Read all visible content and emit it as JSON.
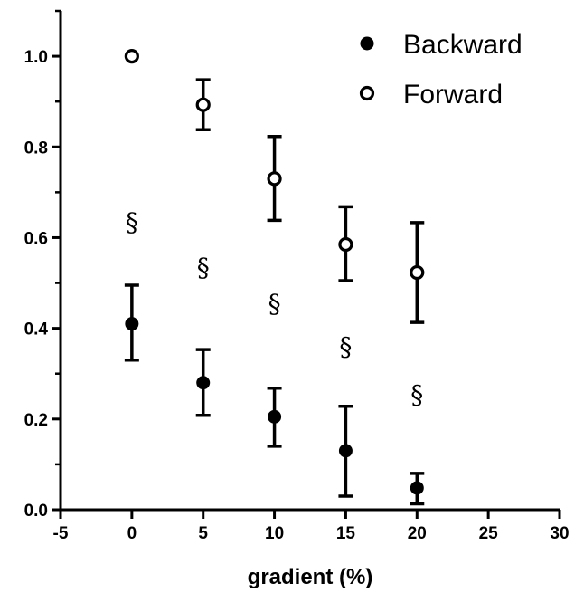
{
  "chart_data": {
    "type": "scatter",
    "xlabel": "gradient (%)",
    "ylabel": "",
    "xlim": [
      -5,
      30
    ],
    "ylim": [
      0,
      1.1
    ],
    "x_ticks": [
      -5,
      0,
      5,
      10,
      15,
      20,
      25,
      30
    ],
    "x_tick_labels": [
      "-5",
      "0",
      "5",
      "10",
      "15",
      "20",
      "25",
      "30"
    ],
    "y_ticks": [
      0,
      0.2,
      0.4,
      0.6,
      0.8,
      1.0
    ],
    "y_tick_labels": [
      "0.0",
      "0.2",
      "0.4",
      "0.6",
      "0.8",
      "1.0"
    ],
    "grid": false,
    "legend": "top-right",
    "series": [
      {
        "name": "Backward",
        "marker": "filled-circle",
        "color": "#000000",
        "x": [
          0,
          5,
          10,
          15,
          20
        ],
        "y": [
          0.41,
          0.28,
          0.205,
          0.13,
          0.048
        ],
        "err_low": [
          0.33,
          0.208,
          0.14,
          0.03,
          0.013
        ],
        "err_high": [
          0.495,
          0.353,
          0.268,
          0.228,
          0.08
        ]
      },
      {
        "name": "Forward",
        "marker": "open-circle",
        "color": "#000000",
        "x": [
          0,
          5,
          10,
          15,
          20
        ],
        "y": [
          1.0,
          0.893,
          0.73,
          0.585,
          0.523
        ],
        "err_low": [
          null,
          0.838,
          0.638,
          0.505,
          0.413
        ],
        "err_high": [
          null,
          0.948,
          0.823,
          0.668,
          0.633
        ]
      }
    ],
    "annotations": [
      {
        "text": "§",
        "x": 0,
        "y": 0.635
      },
      {
        "text": "§",
        "x": 5,
        "y": 0.535
      },
      {
        "text": "§",
        "x": 10,
        "y": 0.455
      },
      {
        "text": "§",
        "x": 15,
        "y": 0.36
      },
      {
        "text": "§",
        "x": 20,
        "y": 0.255
      }
    ]
  }
}
